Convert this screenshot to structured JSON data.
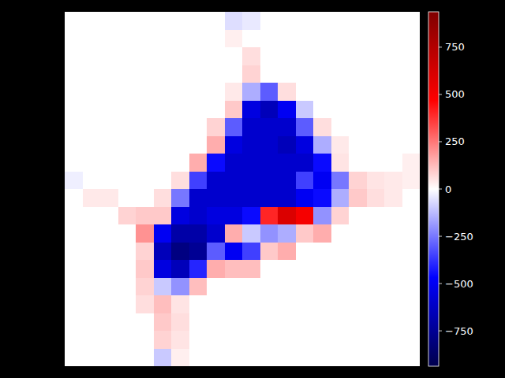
{
  "chart_data": {
    "type": "heatmap",
    "tick_labels": false,
    "cells": [
      [
        0,
        0,
        0,
        0,
        0,
        0,
        0,
        0,
        0,
        -60,
        -40,
        0,
        0,
        0,
        0,
        0,
        0,
        0,
        0,
        0
      ],
      [
        0,
        0,
        0,
        0,
        0,
        0,
        0,
        0,
        0,
        30,
        0,
        0,
        0,
        0,
        0,
        0,
        0,
        0,
        0,
        0
      ],
      [
        0,
        0,
        0,
        0,
        0,
        0,
        0,
        0,
        0,
        0,
        60,
        0,
        0,
        0,
        0,
        0,
        0,
        0,
        0,
        0
      ],
      [
        0,
        0,
        0,
        0,
        0,
        0,
        0,
        0,
        0,
        0,
        80,
        0,
        0,
        0,
        0,
        0,
        0,
        0,
        0,
        0
      ],
      [
        0,
        0,
        0,
        0,
        0,
        0,
        0,
        0,
        0,
        40,
        -150,
        -300,
        60,
        0,
        0,
        0,
        0,
        0,
        0,
        0
      ],
      [
        0,
        0,
        0,
        0,
        0,
        0,
        0,
        0,
        0,
        100,
        -550,
        -650,
        -500,
        -100,
        0,
        0,
        0,
        0,
        0,
        0
      ],
      [
        0,
        0,
        0,
        0,
        0,
        0,
        0,
        0,
        80,
        -300,
        -600,
        -600,
        -600,
        -300,
        60,
        0,
        0,
        0,
        0,
        0
      ],
      [
        0,
        0,
        0,
        0,
        0,
        0,
        0,
        0,
        150,
        -550,
        -600,
        -600,
        -650,
        -550,
        -150,
        40,
        0,
        0,
        0,
        0
      ],
      [
        0,
        0,
        0,
        0,
        0,
        0,
        0,
        150,
        -450,
        -600,
        -600,
        -600,
        -600,
        -600,
        -450,
        50,
        0,
        0,
        0,
        30
      ],
      [
        -30,
        0,
        0,
        0,
        0,
        0,
        60,
        -350,
        -600,
        -600,
        -600,
        -600,
        -600,
        -350,
        -500,
        -250,
        80,
        50,
        40,
        30
      ],
      [
        0,
        40,
        40,
        0,
        0,
        60,
        -250,
        -600,
        -600,
        -600,
        -600,
        -600,
        -600,
        -500,
        -450,
        -150,
        100,
        60,
        40,
        0
      ],
      [
        0,
        0,
        0,
        80,
        100,
        100,
        -550,
        -600,
        -550,
        -550,
        -450,
        400,
        600,
        500,
        -200,
        80,
        0,
        0,
        0,
        0
      ],
      [
        0,
        0,
        0,
        0,
        200,
        -500,
        -700,
        -700,
        -600,
        150,
        -100,
        -200,
        -150,
        100,
        150,
        0,
        0,
        0,
        0,
        0
      ],
      [
        0,
        0,
        0,
        0,
        80,
        -650,
        -800,
        -750,
        -300,
        -500,
        -350,
        100,
        150,
        0,
        0,
        0,
        0,
        0,
        0,
        0
      ],
      [
        0,
        0,
        0,
        0,
        100,
        -550,
        -650,
        -400,
        150,
        120,
        120,
        0,
        0,
        0,
        0,
        0,
        0,
        0,
        0,
        0
      ],
      [
        0,
        0,
        0,
        0,
        80,
        -100,
        -200,
        120,
        0,
        0,
        0,
        0,
        0,
        0,
        0,
        0,
        0,
        0,
        0,
        0
      ],
      [
        0,
        0,
        0,
        0,
        60,
        120,
        50,
        0,
        0,
        0,
        0,
        0,
        0,
        0,
        0,
        0,
        0,
        0,
        0,
        0
      ],
      [
        0,
        0,
        0,
        0,
        0,
        100,
        60,
        0,
        0,
        0,
        0,
        0,
        0,
        0,
        0,
        0,
        0,
        0,
        0,
        0
      ],
      [
        0,
        0,
        0,
        0,
        0,
        80,
        50,
        0,
        0,
        0,
        0,
        0,
        0,
        0,
        0,
        0,
        0,
        0,
        0,
        0
      ],
      [
        0,
        0,
        0,
        0,
        0,
        -100,
        30,
        0,
        0,
        0,
        0,
        0,
        0,
        0,
        0,
        0,
        0,
        0,
        0,
        0
      ]
    ],
    "color_range": [
      -937,
      937
    ],
    "color_ticks": [
      {
        "value": -750,
        "label": "−750"
      },
      {
        "value": -500,
        "label": "−500"
      },
      {
        "value": -250,
        "label": "−250"
      },
      0,
      250,
      500,
      750
    ]
  }
}
